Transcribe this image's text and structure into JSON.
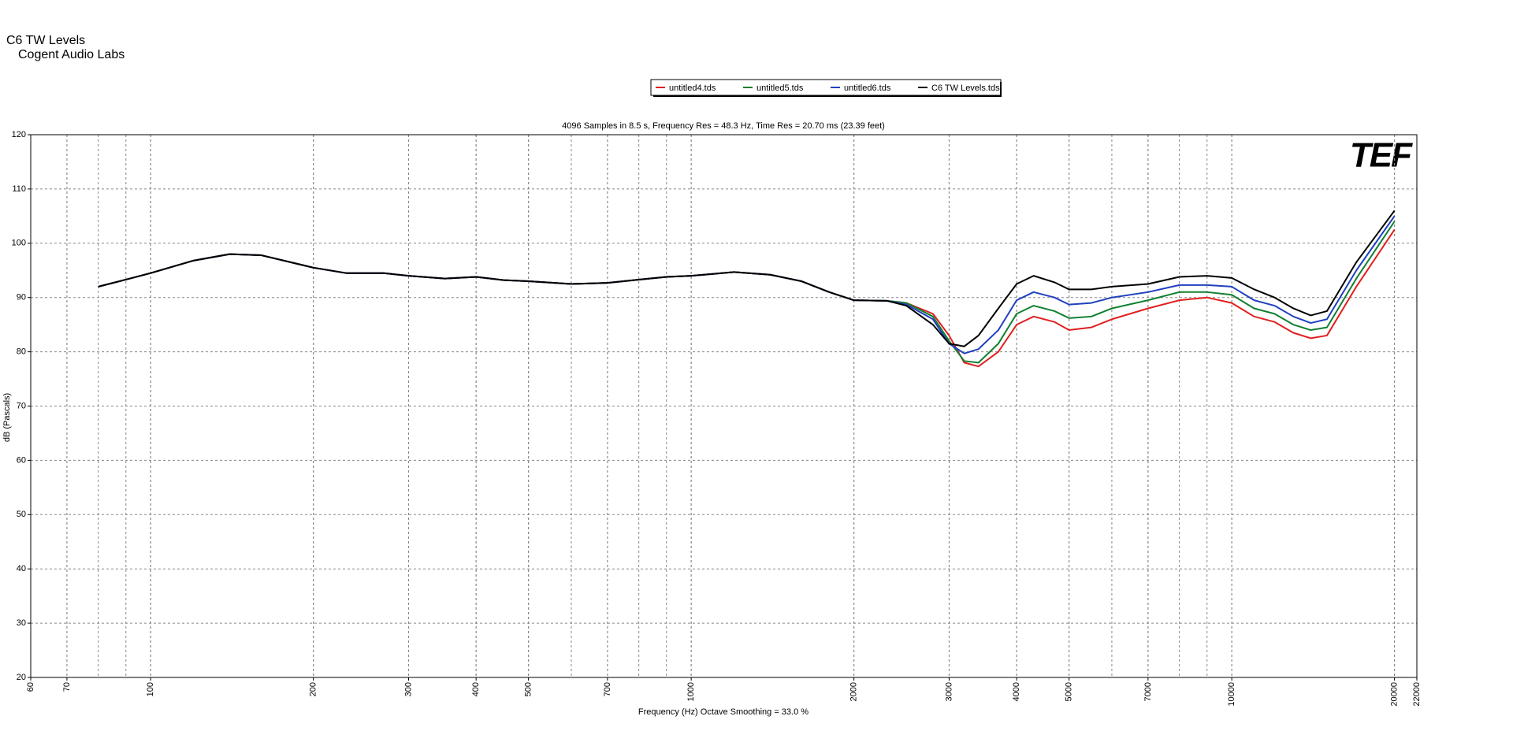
{
  "chart_data": {
    "type": "line",
    "title": "C6  TW Levels",
    "subtitle": "Cogent Audio Labs",
    "chart_subtitle": "4096 Samples in 8.5 s, Frequency Res = 48.3 Hz, Time Res = 20.70 ms (23.39 feet)",
    "x_label": "Frequency (Hz) Octave Smoothing = 33.0 %",
    "y_label": "dB (Pascals)",
    "logo": "TEF",
    "x_scale": "log",
    "grid": true,
    "legend": "top",
    "xlim": [
      60,
      22000
    ],
    "xticks": [
      60,
      70,
      100,
      200,
      300,
      400,
      500,
      700,
      1000,
      2000,
      3000,
      4000,
      5000,
      7000,
      10000,
      20000,
      22000
    ],
    "ylim": [
      20,
      120
    ],
    "yticks": [
      20,
      30,
      40,
      50,
      60,
      70,
      80,
      90,
      100,
      110,
      120
    ],
    "x": [
      80,
      90,
      100,
      120,
      140,
      160,
      200,
      230,
      270,
      300,
      350,
      400,
      450,
      500,
      600,
      700,
      800,
      900,
      1000,
      1200,
      1400,
      1600,
      1800,
      2000,
      2300,
      2500,
      2800,
      3000,
      3200,
      3400,
      3700,
      4000,
      4300,
      4700,
      5000,
      5500,
      6000,
      7000,
      8000,
      9000,
      10000,
      11000,
      12000,
      13000,
      14000,
      15000,
      17000,
      20000
    ],
    "series": [
      {
        "name": "untitled4.tds",
        "color": "#e02020",
        "values": [
          92,
          93.3,
          94.5,
          96.8,
          98,
          97.8,
          95.5,
          94.5,
          94.5,
          94,
          93.5,
          93.8,
          93.2,
          93,
          92.5,
          92.7,
          93.3,
          93.8,
          94,
          94.7,
          94.2,
          93,
          91,
          89.5,
          89.4,
          89,
          87,
          83,
          78,
          77.3,
          80,
          85,
          86.5,
          85.5,
          84,
          84.5,
          86,
          88,
          89.5,
          90,
          89,
          86.5,
          85.5,
          83.5,
          82.5,
          83,
          92,
          102.5
        ]
      },
      {
        "name": "untitled5.tds",
        "color": "#108030",
        "values": [
          92,
          93.3,
          94.5,
          96.8,
          98,
          97.8,
          95.5,
          94.5,
          94.5,
          94,
          93.5,
          93.8,
          93.2,
          93,
          92.5,
          92.7,
          93.3,
          93.8,
          94,
          94.7,
          94.2,
          93,
          91,
          89.5,
          89.4,
          89,
          86.5,
          82,
          78.3,
          78,
          81.5,
          87,
          88.5,
          87.5,
          86.2,
          86.5,
          88,
          89.5,
          91,
          91,
          90.5,
          88,
          87,
          85,
          84,
          84.5,
          93.5,
          104
        ]
      },
      {
        "name": "untitled6.tds",
        "color": "#2040c0",
        "values": [
          92,
          93.3,
          94.5,
          96.8,
          98,
          97.8,
          95.5,
          94.5,
          94.5,
          94,
          93.5,
          93.8,
          93.2,
          93,
          92.5,
          92.7,
          93.3,
          93.8,
          94,
          94.7,
          94.2,
          93,
          91,
          89.5,
          89.4,
          88.7,
          86,
          81.5,
          79.7,
          80.5,
          84,
          89.5,
          91,
          90,
          88.7,
          89,
          90,
          91,
          92.3,
          92.3,
          92,
          89.5,
          88.5,
          86.5,
          85.3,
          86,
          95,
          105
        ]
      },
      {
        "name": "C6  TW Levels.tds",
        "color": "#000000",
        "values": [
          92,
          93.3,
          94.5,
          96.8,
          98,
          97.8,
          95.5,
          94.5,
          94.5,
          94,
          93.5,
          93.8,
          93.2,
          93,
          92.5,
          92.7,
          93.3,
          93.8,
          94,
          94.7,
          94.2,
          93,
          91,
          89.5,
          89.4,
          88.5,
          85,
          81.5,
          81,
          83,
          88,
          92.5,
          94,
          92.8,
          91.5,
          91.5,
          92,
          92.5,
          93.8,
          94,
          93.6,
          91.5,
          90,
          88,
          86.7,
          87.5,
          96.5,
          106
        ]
      }
    ]
  }
}
